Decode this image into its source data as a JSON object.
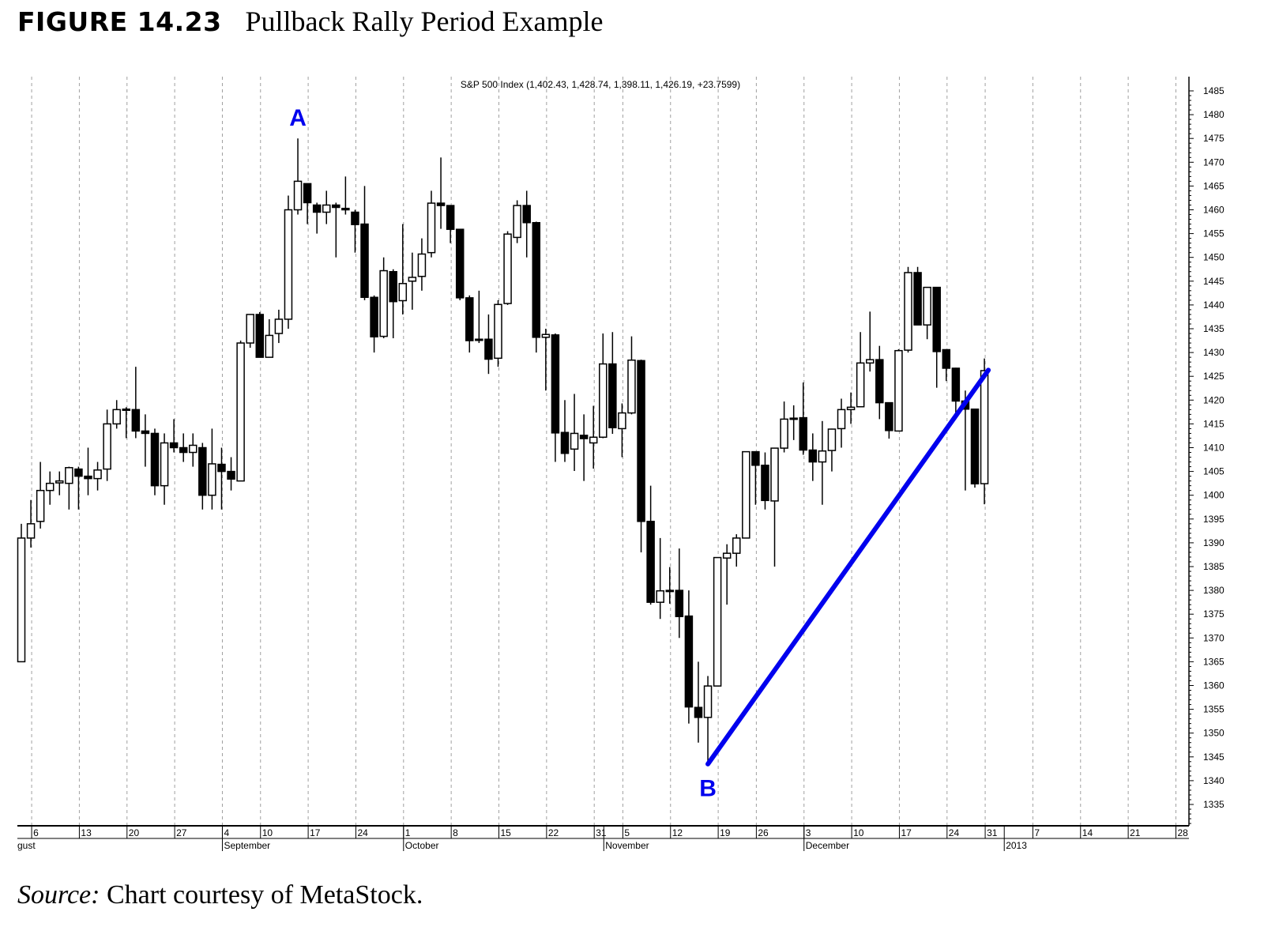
{
  "figure": {
    "number": "FIGURE 14.23",
    "title": "Pullback Rally Period Example"
  },
  "source": {
    "label": "Source:",
    "text": " Chart courtesy of MetaStock."
  },
  "chart_data": {
    "type": "candlestick",
    "legend": "S&P 500 Index (1,402.43, 1,428.74, 1,398.11, 1,426.19, +23.7599)",
    "ylim": [
      1330,
      1488
    ],
    "yticks": [
      1335,
      1340,
      1345,
      1350,
      1355,
      1360,
      1365,
      1370,
      1375,
      1380,
      1385,
      1390,
      1395,
      1400,
      1405,
      1410,
      1415,
      1420,
      1425,
      1430,
      1435,
      1440,
      1445,
      1450,
      1455,
      1460,
      1465,
      1470,
      1475,
      1480,
      1485
    ],
    "y_axis_side": "right",
    "grid": "vertical dashed at week starts",
    "colors": {
      "up": "#ffffff",
      "down": "#000000",
      "trendline": "#0000ee",
      "labels": "#0000ee"
    },
    "xticks": [
      {
        "date": "2012-08-06",
        "label": "6"
      },
      {
        "date": "2012-08-13",
        "label": "13"
      },
      {
        "date": "2012-08-20",
        "label": "20"
      },
      {
        "date": "2012-08-27",
        "label": "27"
      },
      {
        "date": "2012-09-04",
        "label": "4"
      },
      {
        "date": "2012-09-10",
        "label": "10"
      },
      {
        "date": "2012-09-17",
        "label": "17"
      },
      {
        "date": "2012-09-24",
        "label": "24"
      },
      {
        "date": "2012-10-01",
        "label": "1"
      },
      {
        "date": "2012-10-08",
        "label": "8"
      },
      {
        "date": "2012-10-15",
        "label": "15"
      },
      {
        "date": "2012-10-22",
        "label": "22"
      },
      {
        "date": "2012-10-31",
        "label": "31"
      },
      {
        "date": "2012-11-05",
        "label": "5"
      },
      {
        "date": "2012-11-12",
        "label": "12"
      },
      {
        "date": "2012-11-19",
        "label": "19"
      },
      {
        "date": "2012-11-26",
        "label": "26"
      },
      {
        "date": "2012-12-03",
        "label": "3"
      },
      {
        "date": "2012-12-10",
        "label": "10"
      },
      {
        "date": "2012-12-17",
        "label": "17"
      },
      {
        "date": "2012-12-24",
        "label": "24"
      },
      {
        "date": "2012-12-31",
        "label": "31"
      },
      {
        "date": "2013-01-07",
        "label": "7"
      },
      {
        "date": "2013-01-14",
        "label": "14"
      },
      {
        "date": "2013-01-21",
        "label": "21"
      },
      {
        "date": "2013-01-28",
        "label": "28"
      }
    ],
    "month_labels": [
      {
        "date": "2012-08-03",
        "label": "gust"
      },
      {
        "date": "2012-09-04",
        "label": "September"
      },
      {
        "date": "2012-10-01",
        "label": "October"
      },
      {
        "date": "2012-11-01",
        "label": "November"
      },
      {
        "date": "2012-12-03",
        "label": "December"
      },
      {
        "date": "2013-01-02",
        "label": "2013"
      }
    ],
    "candles_fields": [
      "date",
      "open",
      "high",
      "low",
      "close"
    ],
    "candles": [
      [
        "2012-08-03",
        1365,
        1394,
        1365,
        1391
      ],
      [
        "2012-08-06",
        1391,
        1399,
        1389,
        1394
      ],
      [
        "2012-08-07",
        1394.5,
        1407,
        1393,
        1401
      ],
      [
        "2012-08-08",
        1401,
        1405,
        1398,
        1402.5
      ],
      [
        "2012-08-09",
        1402.6,
        1405,
        1400,
        1403
      ],
      [
        "2012-08-10",
        1402.5,
        1406,
        1397,
        1405.8
      ],
      [
        "2012-08-13",
        1405.5,
        1406,
        1397,
        1404
      ],
      [
        "2012-08-14",
        1404,
        1410,
        1400,
        1403.5
      ],
      [
        "2012-08-15",
        1403.5,
        1407,
        1401,
        1405.3
      ],
      [
        "2012-08-16",
        1405.5,
        1418,
        1403,
        1415
      ],
      [
        "2012-08-17",
        1415,
        1420,
        1414,
        1418
      ],
      [
        "2012-08-20",
        1418,
        1418.5,
        1412,
        1418.1
      ],
      [
        "2012-08-21",
        1418,
        1427,
        1412,
        1413.5
      ],
      [
        "2012-08-22",
        1413.5,
        1417,
        1406,
        1413
      ],
      [
        "2012-08-23",
        1413,
        1414,
        1400,
        1402
      ],
      [
        "2012-08-24",
        1402,
        1413,
        1398,
        1411
      ],
      [
        "2012-08-27",
        1411,
        1416,
        1409,
        1410
      ],
      [
        "2012-08-28",
        1410,
        1413,
        1407,
        1409
      ],
      [
        "2012-08-29",
        1409,
        1413,
        1406,
        1410.5
      ],
      [
        "2012-08-30",
        1410,
        1411,
        1397,
        1400
      ],
      [
        "2012-08-31",
        1400,
        1414,
        1397,
        1406.6
      ],
      [
        "2012-09-04",
        1406.5,
        1410,
        1397,
        1405
      ],
      [
        "2012-09-05",
        1405,
        1408,
        1401,
        1403.4
      ],
      [
        "2012-09-06",
        1403,
        1432.5,
        1403,
        1432
      ],
      [
        "2012-09-07",
        1432,
        1438,
        1431,
        1438
      ],
      [
        "2012-09-10",
        1438,
        1438.5,
        1429,
        1429
      ],
      [
        "2012-09-11",
        1429,
        1437,
        1429,
        1433.6
      ],
      [
        "2012-09-12",
        1434,
        1439,
        1432,
        1437
      ],
      [
        "2012-09-13",
        1437,
        1463,
        1435,
        1460
      ],
      [
        "2012-09-14",
        1460,
        1475,
        1459,
        1466
      ],
      [
        "2012-09-17",
        1465.5,
        1465.5,
        1457,
        1461.5
      ],
      [
        "2012-09-18",
        1461,
        1461.5,
        1455,
        1459.5
      ],
      [
        "2012-09-19",
        1459.5,
        1464,
        1457,
        1461
      ],
      [
        "2012-09-20",
        1461,
        1461.5,
        1450,
        1460.5
      ],
      [
        "2012-09-21",
        1460.3,
        1467,
        1459,
        1460
      ],
      [
        "2012-09-24",
        1459.5,
        1460,
        1451,
        1456.9
      ],
      [
        "2012-09-25",
        1457,
        1465,
        1441,
        1441.6
      ],
      [
        "2012-09-26",
        1441.6,
        1442,
        1430,
        1433.3
      ],
      [
        "2012-09-27",
        1433.4,
        1450,
        1433,
        1447.2
      ],
      [
        "2012-09-28",
        1447,
        1447.5,
        1433,
        1440.7
      ],
      [
        "2012-10-01",
        1440.9,
        1457,
        1438,
        1444.5
      ],
      [
        "2012-10-02",
        1445,
        1451,
        1439,
        1445.8
      ],
      [
        "2012-10-03",
        1446,
        1454,
        1443,
        1450.7
      ],
      [
        "2012-10-04",
        1451,
        1464,
        1450,
        1461.4
      ],
      [
        "2012-10-05",
        1461.4,
        1471,
        1456,
        1460.9
      ],
      [
        "2012-10-08",
        1460.9,
        1461,
        1453,
        1455.9
      ],
      [
        "2012-10-09",
        1455.9,
        1456,
        1441,
        1441.5
      ],
      [
        "2012-10-10",
        1441.5,
        1442,
        1430,
        1432.5
      ],
      [
        "2012-10-11",
        1432.6,
        1443,
        1432,
        1432.8
      ],
      [
        "2012-10-12",
        1432.8,
        1438,
        1425.5,
        1428.6
      ],
      [
        "2012-10-15",
        1428.8,
        1441,
        1427,
        1440.1
      ],
      [
        "2012-10-16",
        1440.3,
        1455.5,
        1440,
        1454.9
      ],
      [
        "2012-10-17",
        1454.2,
        1462,
        1453,
        1460.9
      ],
      [
        "2012-10-18",
        1460.9,
        1464,
        1450,
        1457.3
      ],
      [
        "2012-10-19",
        1457.3,
        1457.5,
        1430,
        1433.2
      ],
      [
        "2012-10-22",
        1433.2,
        1435,
        1422,
        1433.8
      ],
      [
        "2012-10-23",
        1433.7,
        1434,
        1407,
        1413.1
      ],
      [
        "2012-10-24",
        1413.2,
        1420,
        1407,
        1408.8
      ],
      [
        "2012-10-25",
        1409.7,
        1421.3,
        1405.1,
        1413
      ],
      [
        "2012-10-26",
        1412.6,
        1417,
        1403,
        1411.9
      ],
      [
        "2012-10-31",
        1411,
        1418.8,
        1405.6,
        1412.2
      ],
      [
        "2012-11-01",
        1412.2,
        1434,
        1412,
        1427.6
      ],
      [
        "2012-11-02",
        1427.6,
        1434.3,
        1412.9,
        1414.2
      ],
      [
        "2012-11-05",
        1414,
        1419.3,
        1408,
        1417.3
      ],
      [
        "2012-11-06",
        1417.3,
        1433.4,
        1417,
        1428.4
      ],
      [
        "2012-11-07",
        1428.3,
        1428.5,
        1388,
        1394.5
      ],
      [
        "2012-11-08",
        1394.5,
        1402,
        1377,
        1377.5
      ],
      [
        "2012-11-09",
        1377.5,
        1391,
        1374,
        1379.9
      ],
      [
        "2012-11-12",
        1379.9,
        1384.9,
        1377.2,
        1380
      ],
      [
        "2012-11-13",
        1380,
        1388.8,
        1370,
        1374.5
      ],
      [
        "2012-11-14",
        1374.6,
        1380,
        1352,
        1355.5
      ],
      [
        "2012-11-15",
        1355.4,
        1365,
        1348,
        1353.3
      ],
      [
        "2012-11-16",
        1353.3,
        1362,
        1343.4,
        1359.9
      ],
      [
        "2012-11-19",
        1359.9,
        1387,
        1359.9,
        1386.9
      ],
      [
        "2012-11-20",
        1386.8,
        1389.7,
        1377,
        1387.8
      ],
      [
        "2012-11-21",
        1387.8,
        1391.8,
        1385,
        1391
      ],
      [
        "2012-11-23",
        1391,
        1409.2,
        1391,
        1409.15
      ],
      [
        "2012-11-26",
        1409.15,
        1409.2,
        1398,
        1406.3
      ],
      [
        "2012-11-27",
        1406.3,
        1409,
        1397,
        1398.9
      ],
      [
        "2012-11-28",
        1398.8,
        1410,
        1385,
        1409.9
      ],
      [
        "2012-11-29",
        1409.9,
        1419.7,
        1409,
        1416
      ],
      [
        "2012-11-30",
        1416,
        1418.9,
        1411.6,
        1416.2
      ],
      [
        "2012-12-03",
        1416.3,
        1423.7,
        1408.5,
        1409.5
      ],
      [
        "2012-12-04",
        1409.5,
        1413,
        1403,
        1407
      ],
      [
        "2012-12-05",
        1407,
        1415.6,
        1398,
        1409.3
      ],
      [
        "2012-12-06",
        1409.4,
        1414,
        1405,
        1413.9
      ],
      [
        "2012-12-07",
        1414,
        1420.3,
        1410,
        1418
      ],
      [
        "2012-12-10",
        1418,
        1421.6,
        1415,
        1418.5
      ],
      [
        "2012-12-11",
        1418.6,
        1434.3,
        1418.6,
        1427.8
      ],
      [
        "2012-12-12",
        1427.8,
        1438.6,
        1426,
        1428.5
      ],
      [
        "2012-12-13",
        1428.5,
        1431.4,
        1416,
        1419.45
      ],
      [
        "2012-12-14",
        1419.45,
        1419.5,
        1411.9,
        1413.6
      ],
      [
        "2012-12-17",
        1413.5,
        1430.7,
        1413.5,
        1430.4
      ],
      [
        "2012-12-18",
        1430.5,
        1448,
        1430,
        1446.8
      ],
      [
        "2012-12-19",
        1446.8,
        1448,
        1435.8,
        1435.8
      ],
      [
        "2012-12-20",
        1435.8,
        1443.7,
        1432.8,
        1443.7
      ],
      [
        "2012-12-21",
        1443.7,
        1443.8,
        1422.6,
        1430.2
      ],
      [
        "2012-12-24",
        1430.6,
        1430.7,
        1424,
        1426.7
      ],
      [
        "2012-12-26",
        1426.7,
        1426.8,
        1416,
        1419.8
      ],
      [
        "2012-12-27",
        1419.8,
        1422,
        1401,
        1418.1
      ],
      [
        "2012-12-28",
        1418.1,
        1418.2,
        1401.6,
        1402.4
      ],
      [
        "2012-12-31",
        1402.43,
        1428.74,
        1398.11,
        1426.19
      ]
    ],
    "trendline": {
      "from": {
        "date": "2012-11-16",
        "value": 1343.5
      },
      "to": {
        "date": "2012-12-31",
        "value": 1426.3
      }
    },
    "annotations": [
      {
        "label": "A",
        "date": "2012-09-14",
        "position": "above"
      },
      {
        "label": "B",
        "date": "2012-11-16",
        "position": "below"
      }
    ]
  }
}
